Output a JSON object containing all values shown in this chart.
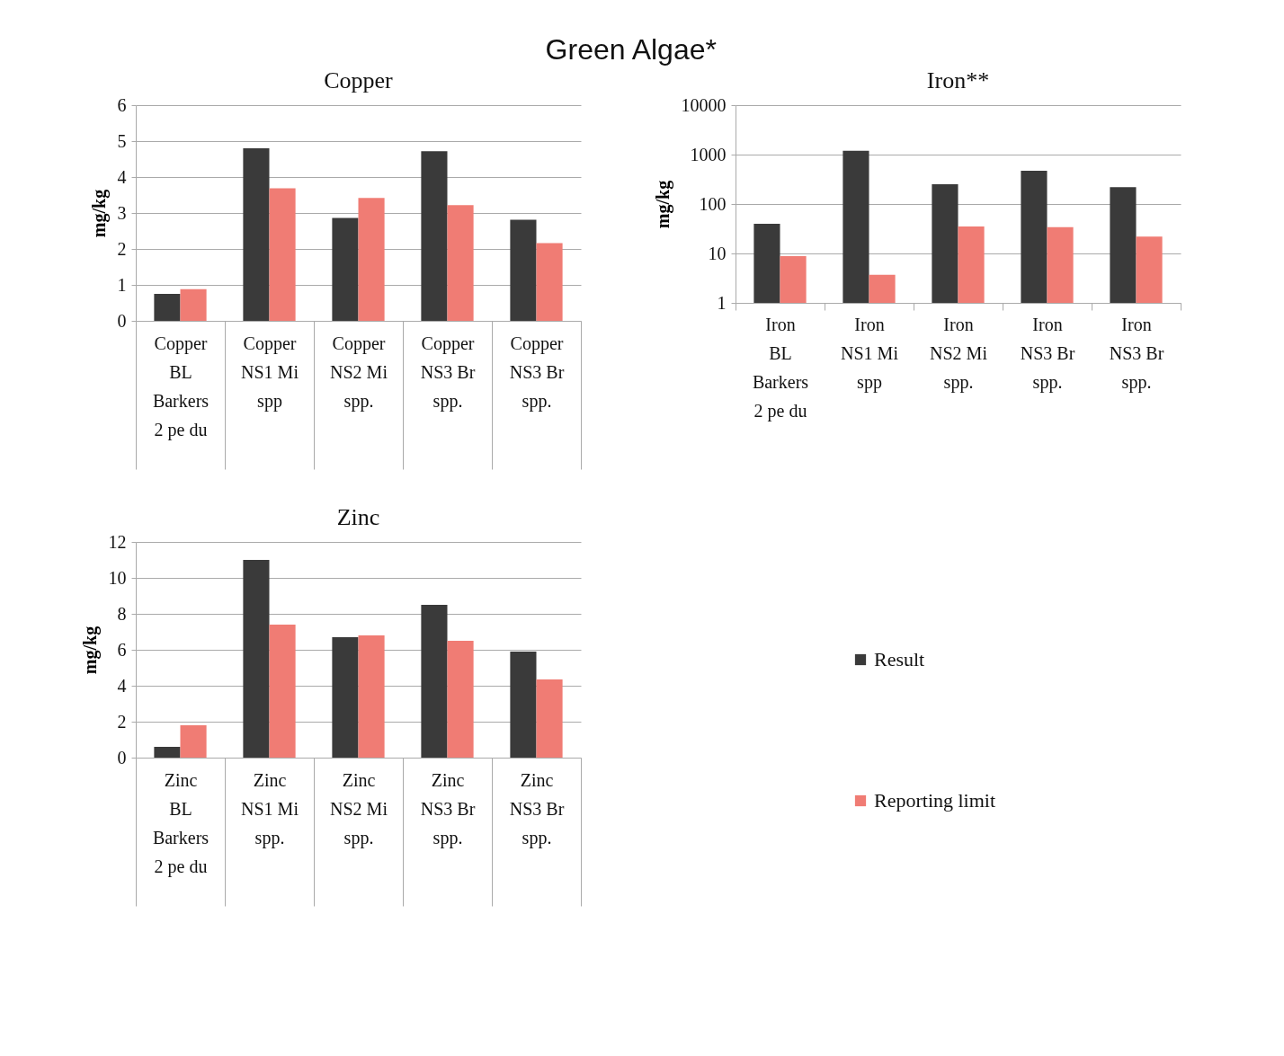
{
  "chart_data": [
    {
      "type": "bar",
      "title": "Copper",
      "annotations": [
        "Green Algae*"
      ],
      "ylabel": "mg/kg",
      "categories": [
        "Copper\nBL\nBarkers\n2 pe du",
        "Copper\nNS1 Mi\nspp",
        "Copper\nNS2 Mi\nspp.",
        "Copper\nNS3 Br\nspp.",
        "Copper\nNS3 Br\nspp."
      ],
      "series": [
        {
          "color": "#3a3a3a",
          "values": [
            0.75,
            4.8,
            2.86,
            4.72,
            2.81
          ]
        },
        {
          "color": "#f07c74",
          "values": [
            0.88,
            3.69,
            3.42,
            3.22,
            2.16
          ]
        }
      ],
      "ylim": [
        0,
        6
      ],
      "yticks": [
        0,
        1,
        2,
        3,
        4,
        5,
        6
      ],
      "grid": "y",
      "legend": false
    },
    {
      "type": "bar",
      "title": "Iron**",
      "ylabel": "mg/kg",
      "categories": [
        "Iron\nBL\nBarkers\n2 pe du",
        "Iron\nNS1 Mi\nspp",
        "Iron\nNS2 Mi\nspp.",
        "Iron\nNS3 Br\nspp.",
        "Iron\nNS3 Br\nspp."
      ],
      "series": [
        {
          "color": "#3a3a3a",
          "values": [
            40,
            1200,
            250,
            470,
            220
          ]
        },
        {
          "color": "#f07c74",
          "values": [
            8.8,
            3.7,
            35,
            34,
            22
          ]
        }
      ],
      "log": true,
      "ylim": [
        1,
        10000
      ],
      "yticks": [
        1,
        10,
        100,
        1000,
        10000
      ],
      "grid": "y",
      "legend": false
    },
    {
      "type": "bar",
      "title": "Zinc",
      "ylabel": "mg/kg",
      "categories": [
        "Zinc\nBL\nBarkers\n2 pe du",
        "Zinc\nNS1 Mi\nspp.",
        "Zinc\nNS2 Mi\nspp.",
        "Zinc\nNS3 Br\nspp.",
        "Zinc\nNS3 Br\nspp."
      ],
      "series": [
        {
          "name": "Result",
          "color": "#3a3a3a",
          "values": [
            0.6,
            11.0,
            6.7,
            8.5,
            5.9
          ]
        },
        {
          "name": "Reporting limit",
          "color": "#f07c74",
          "values": [
            1.8,
            7.4,
            6.8,
            6.5,
            4.35
          ]
        }
      ],
      "ylim": [
        0,
        12
      ],
      "yticks": [
        0,
        2,
        4,
        6,
        8,
        10,
        12
      ],
      "grid": "y",
      "legend": "right"
    }
  ]
}
